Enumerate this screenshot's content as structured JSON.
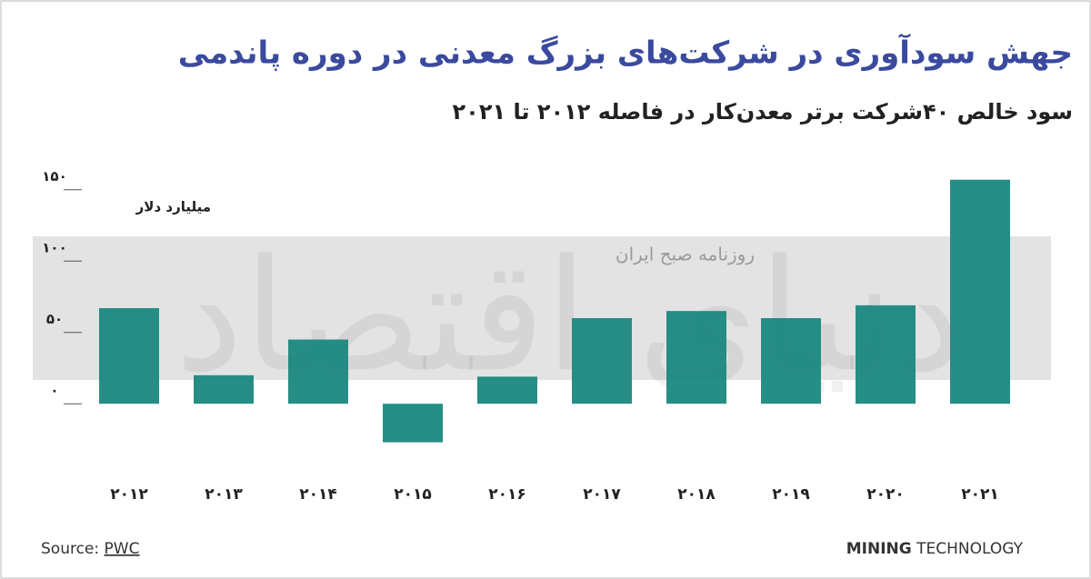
{
  "chart_data": {
    "type": "bar",
    "title": "جهش سودآوری در شرکت‌های بزرگ معدنی در دوره پاندمی",
    "subtitle": "سود خالص ۴۰شرکت برتر معدن‌کار در فاصله ۲۰۱۲ تا ۲۰۲۱",
    "y_label": "میلیارد دلار",
    "categories": [
      "۲۰۱۲",
      "۲۰۱۳",
      "۲۰۱۴",
      "۲۰۱۵",
      "۲۰۱۶",
      "۲۰۱۷",
      "۲۰۱۸",
      "۲۰۱۹",
      "۲۰۲۰",
      "۲۰۲۱"
    ],
    "values": [
      67,
      20,
      45,
      -27,
      19,
      60,
      65,
      60,
      69,
      157
    ],
    "color": "#1b887f",
    "ylim": [
      -40,
      160
    ],
    "yticks": [
      {
        "value": 0,
        "label": "۰"
      },
      {
        "value": 50,
        "label": "۵۰"
      },
      {
        "value": 100,
        "label": "۱۰۰"
      },
      {
        "value": 150,
        "label": "۱۵۰"
      }
    ],
    "source_label": "Source:",
    "source": "PWC",
    "brand_bold": "MINING",
    "brand": "TECHNOLOGY",
    "watermark": "دنیای اقتصاد",
    "watermark_sub": "روزنامه صبح ایران"
  }
}
